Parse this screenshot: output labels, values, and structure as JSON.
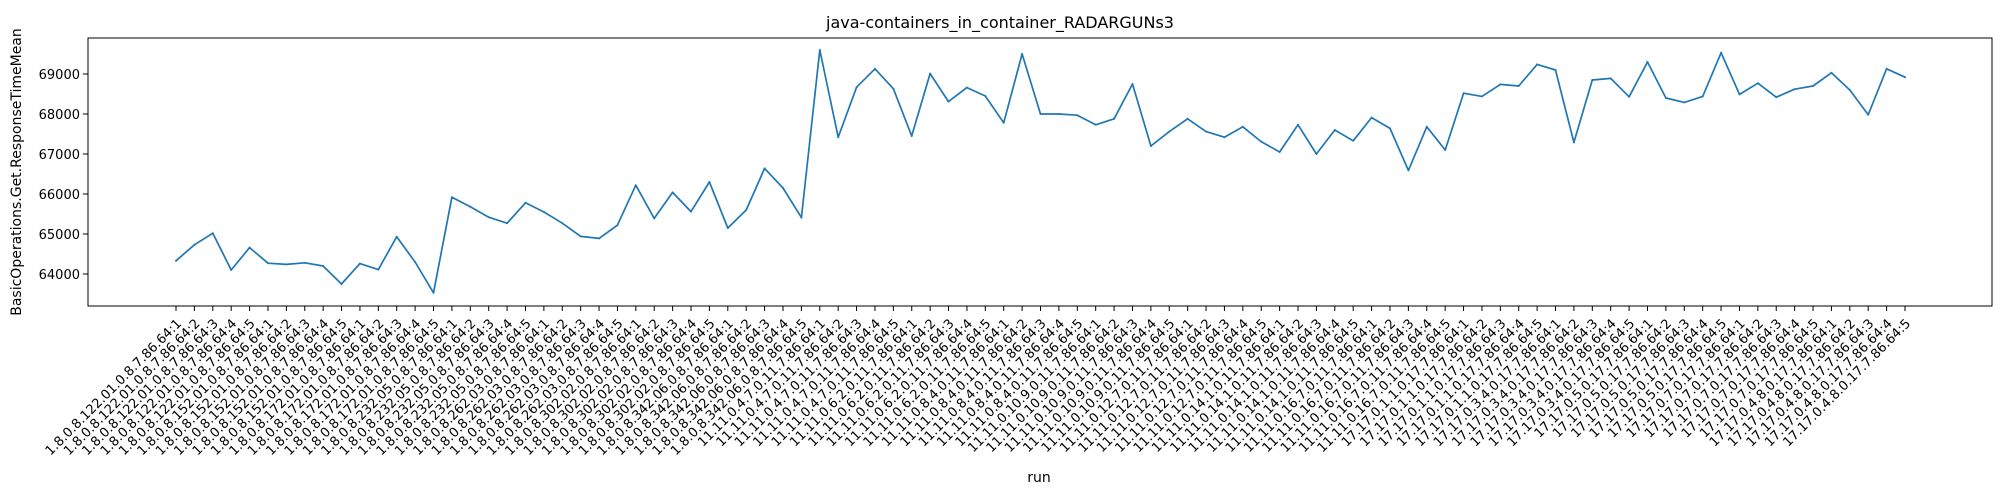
{
  "chart_data": {
    "type": "line",
    "title": "java-containers_in_container_RADARGUNs3",
    "xlabel": "run",
    "ylabel": "BasicOperations.Get.ResponseTimeMean",
    "ylim": [
      63200,
      69900
    ],
    "yticks": [
      64000,
      65000,
      66000,
      67000,
      68000,
      69000
    ],
    "grid": false,
    "line_color": "#1f77b4",
    "categories": [
      "1.8.0.8.122.01.0.8.7.86.64:1",
      "1.8.0.8.122.01.0.8.7.86.64:2",
      "1.8.0.8.122.01.0.8.7.86.64:3",
      "1.8.0.8.122.01.0.8.7.86.64:4",
      "1.8.0.8.122.01.0.8.7.86.64:5",
      "1.8.0.8.152.01.0.8.7.86.64:1",
      "1.8.0.8.152.01.0.8.7.86.64:2",
      "1.8.0.8.152.01.0.8.7.86.64:3",
      "1.8.0.8.152.01.0.8.7.86.64:4",
      "1.8.0.8.152.01.0.8.7.86.64:5",
      "1.8.0.8.172.01.0.8.7.86.64:1",
      "1.8.0.8.172.01.0.8.7.86.64:2",
      "1.8.0.8.172.01.0.8.7.86.64:3",
      "1.8.0.8.172.01.0.8.7.86.64:4",
      "1.8.0.8.172.01.0.8.7.86.64:5",
      "1.8.0.8.232.05.0.8.7.86.64:1",
      "1.8.0.8.232.05.0.8.7.86.64:2",
      "1.8.0.8.232.05.0.8.7.86.64:3",
      "1.8.0.8.232.05.0.8.7.86.64:4",
      "1.8.0.8.232.05.0.8.7.86.64:5",
      "1.8.0.8.262.03.0.8.7.86.64:1",
      "1.8.0.8.262.03.0.8.7.86.64:2",
      "1.8.0.8.262.03.0.8.7.86.64:3",
      "1.8.0.8.262.03.0.8.7.86.64:4",
      "1.8.0.8.262.03.0.8.7.86.64:5",
      "1.8.0.8.302.02.0.8.7.86.64:1",
      "1.8.0.8.302.02.0.8.7.86.64:2",
      "1.8.0.8.302.02.0.8.7.86.64:3",
      "1.8.0.8.302.02.0.8.7.86.64:4",
      "1.8.0.8.302.02.0.8.7.86.64:5",
      "1.8.0.8.342.06.0.8.7.86.64:1",
      "1.8.0.8.342.06.0.8.7.86.64:2",
      "1.8.0.8.342.06.0.8.7.86.64:3",
      "1.8.0.8.342.06.0.8.7.86.64:4",
      "1.8.0.8.342.06.0.8.7.86.64:5",
      "11.11.0.4.7.0.11.7.86.64:1",
      "11.11.0.4.7.0.11.7.86.64:2",
      "11.11.0.4.7.0.11.7.86.64:3",
      "11.11.0.4.7.0.11.7.86.64:4",
      "11.11.0.4.7.0.11.7.86.64:5",
      "11.11.0.6.2.0.11.7.86.64:1",
      "11.11.0.6.2.0.11.7.86.64:2",
      "11.11.0.6.2.0.11.7.86.64:3",
      "11.11.0.6.2.0.11.7.86.64:4",
      "11.11.0.6.2.0.11.7.86.64:5",
      "11.11.0.8.4.0.11.7.86.64:1",
      "11.11.0.8.4.0.11.7.86.64:2",
      "11.11.0.8.4.0.11.7.86.64:3",
      "11.11.0.8.4.0.11.7.86.64:4",
      "11.11.0.8.4.0.11.7.86.64:5",
      "11.11.0.10.9.0.11.7.86.64:1",
      "11.11.0.10.9.0.11.7.86.64:2",
      "11.11.0.10.9.0.11.7.86.64:3",
      "11.11.0.10.9.0.11.7.86.64:4",
      "11.11.0.10.9.0.11.7.86.64:5",
      "11.11.0.12.7.0.11.7.86.64:1",
      "11.11.0.12.7.0.11.7.86.64:2",
      "11.11.0.12.7.0.11.7.86.64:3",
      "11.11.0.12.7.0.11.7.86.64:4",
      "11.11.0.12.7.0.11.7.86.64:5",
      "11.11.0.14.1.0.11.7.86.64:1",
      "11.11.0.14.1.0.11.7.86.64:2",
      "11.11.0.14.1.0.11.7.86.64:3",
      "11.11.0.14.1.0.11.7.86.64:4",
      "11.11.0.14.1.0.11.7.86.64:5",
      "11.11.0.16.7.0.11.7.86.64:1",
      "11.11.0.16.7.0.11.7.86.64:2",
      "11.11.0.16.7.0.11.7.86.64:3",
      "11.11.0.16.7.0.11.7.86.64:4",
      "11.11.0.16.7.0.11.7.86.64:5",
      "17.17.0.1.1.0.17.7.86.64:1",
      "17.17.0.1.1.0.17.7.86.64:2",
      "17.17.0.1.1.0.17.7.86.64:3",
      "17.17.0.1.1.0.17.7.86.64:4",
      "17.17.0.1.1.0.17.7.86.64:5",
      "17.17.0.3.4.0.17.7.86.64:1",
      "17.17.0.3.4.0.17.7.86.64:2",
      "17.17.0.3.4.0.17.7.86.64:3",
      "17.17.0.3.4.0.17.7.86.64:4",
      "17.17.0.3.4.0.17.7.86.64:5",
      "17.17.0.5.0.17.7.86.64:1",
      "17.17.0.5.0.17.7.86.64:2",
      "17.17.0.5.0.17.7.86.64:3",
      "17.17.0.5.0.17.7.86.64:4",
      "17.17.0.5.0.17.7.86.64:5",
      "17.17.0.7.0.17.7.86.64:1",
      "17.17.0.7.0.17.7.86.64:2",
      "17.17.0.7.0.17.7.86.64:3",
      "17.17.0.7.0.17.7.86.64:4",
      "17.17.0.7.0.17.7.86.64:5",
      "17.17.0.4.8.0.17.7.86.64:1",
      "17.17.0.4.8.0.17.7.86.64:2",
      "17.17.0.4.8.0.17.7.86.64:3",
      "17.17.0.4.8.0.17.7.86.64:4",
      "17.17.0.4.8.0.17.7.86.64:5"
    ],
    "values": [
      64330,
      64730,
      65020,
      64100,
      64660,
      64270,
      64240,
      64280,
      64200,
      63750,
      64260,
      64110,
      64930,
      64300,
      63530,
      65920,
      65680,
      65420,
      65270,
      65780,
      65550,
      65270,
      64940,
      64890,
      65220,
      66220,
      65390,
      66040,
      65560,
      66300,
      65150,
      65600,
      66640,
      66150,
      65410,
      69600,
      67420,
      68670,
      69130,
      68630,
      67450,
      69010,
      68310,
      68660,
      68450,
      67780,
      69500,
      68000,
      68000,
      67970,
      67730,
      67880,
      68750,
      67200,
      67560,
      67880,
      67560,
      67420,
      67680,
      67310,
      67050,
      67730,
      67000,
      67600,
      67330,
      67910,
      67640,
      66590,
      67680,
      67100,
      68520,
      68440,
      68740,
      68700,
      69240,
      69100,
      67290,
      68850,
      68890,
      68430,
      69300,
      68400,
      68290,
      68440,
      69530,
      68490,
      68770,
      68420,
      68620,
      68700,
      69030,
      68600,
      67980,
      69130,
      68920
    ]
  }
}
